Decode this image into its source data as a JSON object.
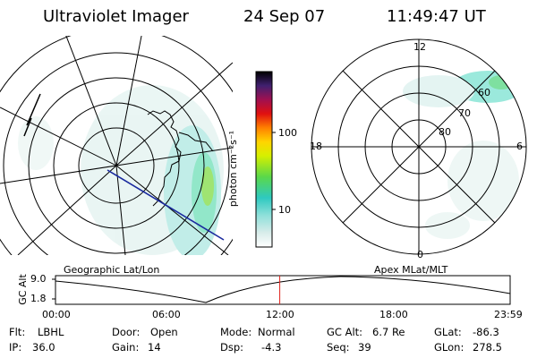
{
  "header": {
    "instrument": "Ultraviolet Imager",
    "date": "24 Sep 07",
    "time": "11:49:47 UT"
  },
  "colorbar": {
    "unit_label": "photon cm⁻²s⁻¹",
    "ticks": [
      "100",
      "10"
    ]
  },
  "apex_plot": {
    "mlt_labels": {
      "top": "12",
      "left": "18",
      "right": "6",
      "bottom": "0"
    },
    "lat_labels": [
      "60",
      "70",
      "80"
    ]
  },
  "panel_labels": {
    "left": "Geographic Lat/Lon",
    "right": "Apex MLat/MLT"
  },
  "altitude_plot": {
    "ylabel": "GC Alt",
    "yticks": [
      "9.0",
      "1.8"
    ],
    "xticks": [
      "00:00",
      "06:00",
      "12:00",
      "18:00",
      "23:59"
    ],
    "current_time_marker_hours": 11.83
  },
  "info": {
    "filter_label": "Flt:",
    "filter_value": "LBHL",
    "ip_label": "IP:",
    "ip_value": "36.0",
    "door_label": "Door:",
    "door_value": "Open",
    "gain_label": "Gain:",
    "gain_value": "14",
    "mode_label": "Mode:",
    "mode_value": "Normal",
    "dsp_label": "Dsp:",
    "dsp_value": "-4.3",
    "gcalt_label": "GC Alt:",
    "gcalt_value": "6.7 Re",
    "seq_label": "Seq:",
    "seq_value": "39",
    "glat_label": "GLat:",
    "glat_value": "-86.3",
    "glon_label": "GLon:",
    "glon_value": "278.5"
  },
  "colors": {
    "marker": "#e0201a",
    "track": "#1a2a9e",
    "aurora_light": "#c8ece8",
    "aurora_mid": "#5fdcd0",
    "aurora_green": "#6ad83a"
  }
}
